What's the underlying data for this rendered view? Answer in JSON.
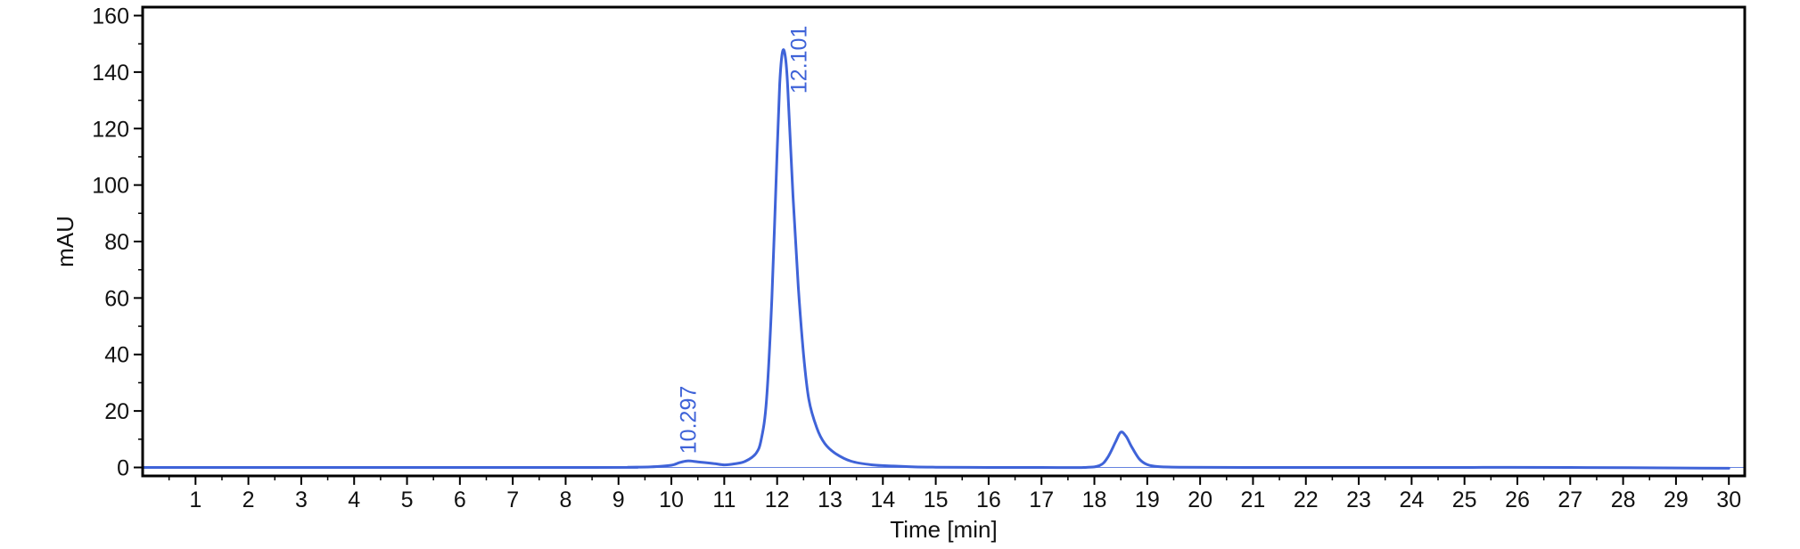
{
  "chart_data": {
    "type": "line",
    "xlabel": "Time [min]",
    "ylabel": "mAU",
    "xlim": [
      0,
      30.3
    ],
    "ylim": [
      -3,
      163
    ],
    "x_ticks": [
      1,
      2,
      3,
      4,
      5,
      6,
      7,
      8,
      9,
      10,
      11,
      12,
      13,
      14,
      15,
      16,
      17,
      18,
      19,
      20,
      21,
      22,
      23,
      24,
      25,
      26,
      27,
      28,
      29,
      30
    ],
    "y_ticks": [
      0,
      20,
      40,
      60,
      80,
      100,
      120,
      140,
      160
    ],
    "grid": false,
    "legend": "none",
    "line_color": "#3f63d8",
    "series": [
      {
        "x": [
          0,
          8.5,
          9.2,
          9.6,
          10.0,
          10.15,
          10.3,
          10.5,
          10.8,
          11.0,
          11.2,
          11.4,
          11.6,
          11.7,
          11.8,
          11.9,
          12.0,
          12.05,
          12.1,
          12.15,
          12.2,
          12.3,
          12.4,
          12.5,
          12.6,
          12.75,
          12.9,
          13.1,
          13.4,
          13.8,
          14.2,
          14.6,
          15.0,
          16.0,
          17.0,
          17.8,
          18.1,
          18.25,
          18.4,
          18.5,
          18.6,
          18.7,
          18.85,
          19.0,
          19.2,
          19.6,
          21.0,
          24.0,
          27.0,
          30.0
        ],
        "y": [
          0,
          0,
          0.1,
          0.2,
          0.8,
          1.7,
          2.3,
          2.0,
          1.4,
          0.9,
          1.3,
          2.2,
          5.0,
          10.0,
          24.0,
          60.0,
          112.0,
          136.0,
          147.0,
          146.0,
          135.0,
          96.0,
          64.0,
          40.0,
          24.0,
          14.0,
          8.5,
          5.0,
          2.2,
          0.9,
          0.5,
          0.2,
          0.1,
          0,
          0,
          0,
          0.7,
          3.5,
          9.0,
          12.5,
          11.0,
          7.5,
          3.0,
          1.0,
          0.3,
          0.1,
          0,
          0,
          0,
          -0.3
        ]
      }
    ],
    "annotations": [
      {
        "text": "10.297",
        "x": 10.297,
        "y": 2.3
      },
      {
        "text": "12.101",
        "x": 12.101,
        "y": 147.5
      }
    ]
  }
}
